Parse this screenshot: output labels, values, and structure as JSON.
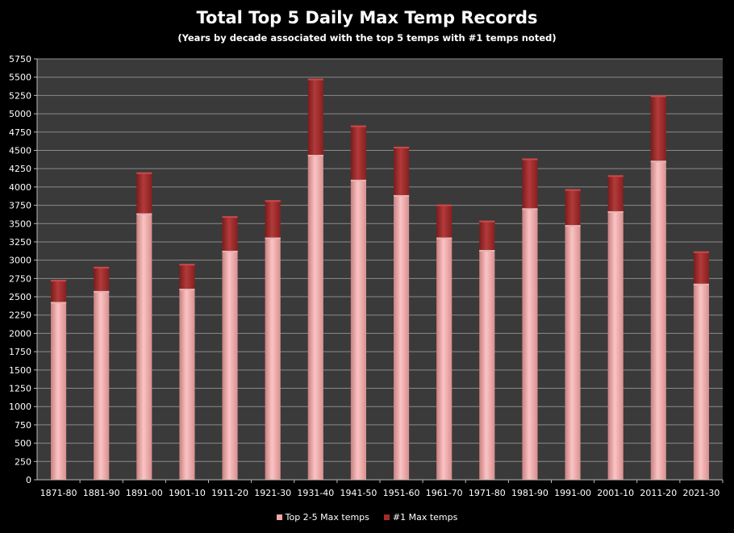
{
  "chart_data": {
    "type": "bar",
    "stacked": true,
    "title": "Total Top 5 Daily Max Temp Records",
    "subtitle": "(Years by decade associated with the top 5 temps with #1 temps noted)",
    "categories": [
      "1871-80",
      "1881-90",
      "1891-00",
      "1901-10",
      "1911-20",
      "1921-30",
      "1931-40",
      "1941-50",
      "1951-60",
      "1961-70",
      "1971-80",
      "1981-90",
      "1991-00",
      "2001-10",
      "2011-20",
      "2021-30"
    ],
    "series": [
      {
        "name": "Top 2-5 Max temps",
        "color": "#f4a7a7",
        "values": [
          2430,
          2580,
          3640,
          2610,
          3130,
          3310,
          4440,
          4100,
          3890,
          3310,
          3140,
          3710,
          3480,
          3670,
          4360,
          2680
        ]
      },
      {
        "name": "#1 Max temps",
        "color": "#a52a2a",
        "values": [
          300,
          330,
          560,
          340,
          470,
          510,
          1040,
          740,
          660,
          450,
          400,
          680,
          490,
          490,
          890,
          440
        ]
      }
    ],
    "yticks": [
      "0",
      "250",
      "500",
      "750",
      "1000",
      "1250",
      "1500",
      "1750",
      "2000",
      "2250",
      "2500",
      "2750",
      "3000",
      "3250",
      "3500",
      "3750",
      "4000",
      "4250",
      "4500",
      "4750",
      "5000",
      "5250",
      "5500",
      "5750"
    ],
    "ylim": [
      0,
      5750
    ],
    "grid": true,
    "legend_position": "bottom"
  }
}
